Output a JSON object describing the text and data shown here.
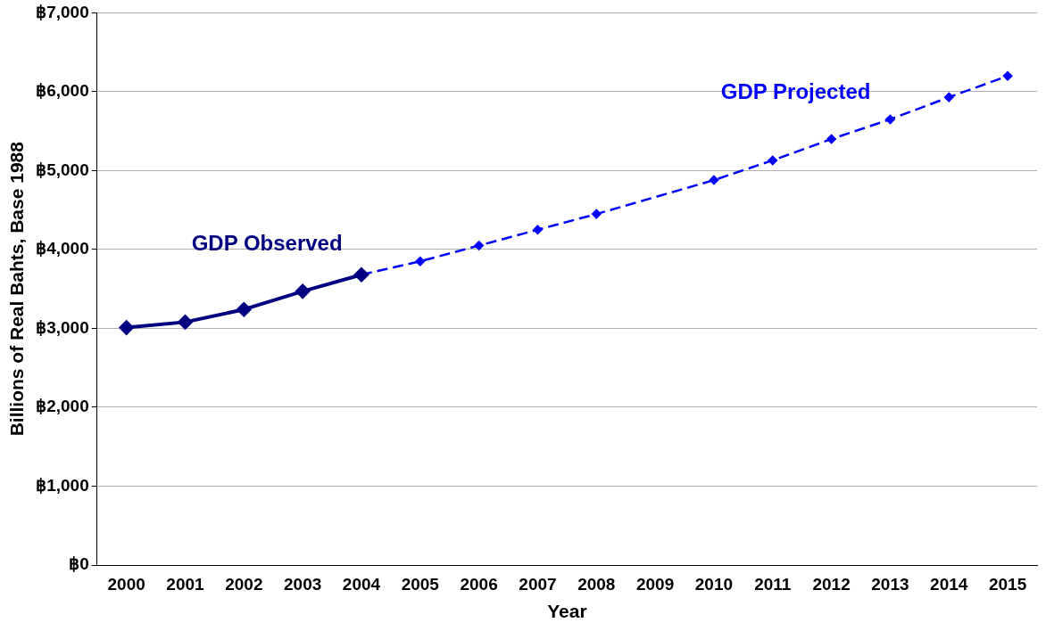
{
  "chart_data": {
    "type": "line",
    "xlabel": "Year",
    "ylabel": "Billions of Real Bahts, Base 1988",
    "categories": [
      "2000",
      "2001",
      "2002",
      "2003",
      "2004",
      "2005",
      "2006",
      "2007",
      "2008",
      "2009",
      "2010",
      "2011",
      "2012",
      "2013",
      "2014",
      "2015"
    ],
    "series": [
      {
        "name": "GDP Observed",
        "color": "#000080",
        "line_style": "solid",
        "marker": "diamond",
        "values": [
          3010,
          3080,
          3240,
          3470,
          3680,
          null,
          null,
          null,
          null,
          null,
          null,
          null,
          null,
          null,
          null,
          null
        ]
      },
      {
        "name": "GDP Projected",
        "color": "#0000ff",
        "line_style": "dashed",
        "marker": "diamond",
        "values": [
          null,
          null,
          null,
          null,
          3680,
          3850,
          4050,
          4250,
          4450,
          null,
          4880,
          5130,
          5400,
          5650,
          5930,
          6200
        ]
      }
    ],
    "ylim": [
      0,
      7000
    ],
    "yticks": [
      {
        "value": 0,
        "label": "฿0"
      },
      {
        "value": 1000,
        "label": "฿1,000"
      },
      {
        "value": 2000,
        "label": "฿2,000"
      },
      {
        "value": 3000,
        "label": "฿3,000"
      },
      {
        "value": 4000,
        "label": "฿4,000"
      },
      {
        "value": 5000,
        "label": "฿5,000"
      },
      {
        "value": 6000,
        "label": "฿6,000"
      },
      {
        "value": 7000,
        "label": "฿7,000"
      }
    ],
    "grid": "y",
    "legend": false
  }
}
